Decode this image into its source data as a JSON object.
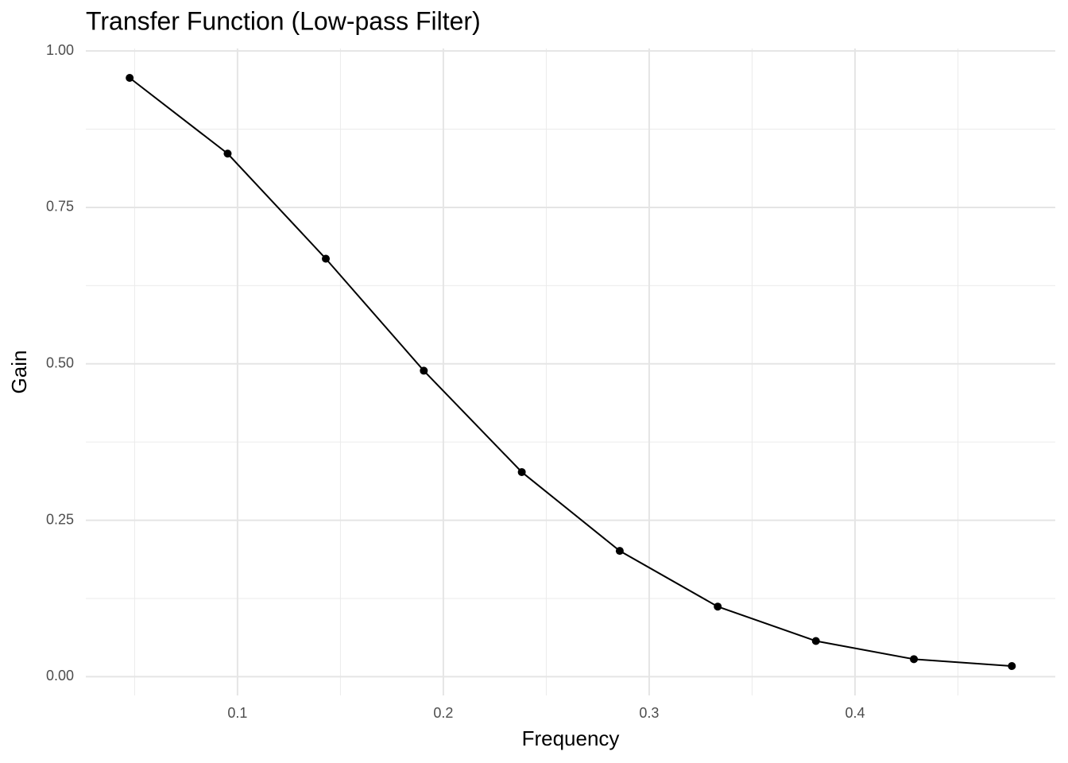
{
  "chart_data": {
    "type": "line",
    "title": "Transfer Function (Low-pass Filter)",
    "x_label": "Frequency",
    "y_label": "Gain",
    "x": [
      0.0476,
      0.0952,
      0.1429,
      0.1905,
      0.2381,
      0.2857,
      0.3333,
      0.381,
      0.4286,
      0.4762
    ],
    "series": [
      {
        "name": "Gain",
        "color": "#000000",
        "values": [
          0.957,
          0.836,
          0.668,
          0.489,
          0.327,
          0.201,
          0.112,
          0.057,
          0.028,
          0.017
        ]
      }
    ],
    "xlim": [
      0.0263,
      0.4973
    ],
    "ylim": [
      -0.03,
      1.004
    ],
    "xticks": [
      0.1,
      0.2,
      0.3,
      0.4
    ],
    "yticks": [
      {
        "value": 0,
        "label": "0.00"
      },
      {
        "value": 0.25,
        "label": "0.25"
      },
      {
        "value": 0.5,
        "label": "0.50"
      },
      {
        "value": 0.75,
        "label": "0.75"
      },
      {
        "value": 1,
        "label": "1.00"
      }
    ],
    "x_minor_ticks": [
      0.05,
      0.15,
      0.25,
      0.35,
      0.45
    ],
    "y_minor_ticks": [
      0.125,
      0.375,
      0.625,
      0.875
    ],
    "grid": true
  }
}
